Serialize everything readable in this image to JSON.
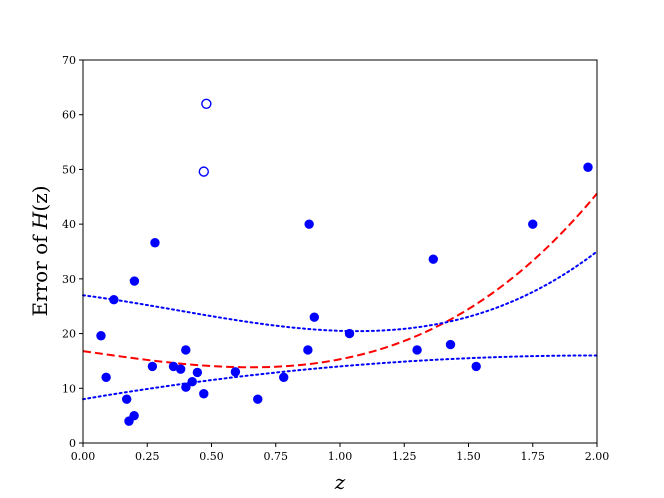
{
  "chart_data": {
    "type": "scatter",
    "xlabel": "z",
    "ylabel_prefix": "Error of ",
    "ylabel_func": "H",
    "ylabel_arg": "(z)",
    "xlim": [
      0.0,
      2.0
    ],
    "ylim": [
      0,
      70
    ],
    "xticks": [
      "0.00",
      "0.25",
      "0.50",
      "0.75",
      "1.00",
      "1.25",
      "1.50",
      "1.75",
      "2.00"
    ],
    "xtick_values": [
      0.0,
      0.25,
      0.5,
      0.75,
      1.0,
      1.25,
      1.5,
      1.75,
      2.0
    ],
    "yticks": [
      "0",
      "10",
      "20",
      "30",
      "40",
      "50",
      "60",
      "70"
    ],
    "ytick_values": [
      0,
      10,
      20,
      30,
      40,
      50,
      60,
      70
    ],
    "grid": false,
    "colors": {
      "points": "#0000ff",
      "fit_curve": "#ff0000",
      "bound_curves": "#0000ff"
    },
    "filled_points": [
      {
        "x": 0.07,
        "y": 19.6
      },
      {
        "x": 0.09,
        "y": 12.0
      },
      {
        "x": 0.12,
        "y": 26.2
      },
      {
        "x": 0.17,
        "y": 8.0
      },
      {
        "x": 0.179,
        "y": 4.0
      },
      {
        "x": 0.199,
        "y": 5.0
      },
      {
        "x": 0.2,
        "y": 29.6
      },
      {
        "x": 0.27,
        "y": 14.0
      },
      {
        "x": 0.28,
        "y": 36.6
      },
      {
        "x": 0.352,
        "y": 14.0
      },
      {
        "x": 0.38,
        "y": 13.5
      },
      {
        "x": 0.4,
        "y": 17.0
      },
      {
        "x": 0.4004,
        "y": 10.2
      },
      {
        "x": 0.425,
        "y": 11.2
      },
      {
        "x": 0.445,
        "y": 12.9
      },
      {
        "x": 0.47,
        "y": 9.0
      },
      {
        "x": 0.593,
        "y": 13.0
      },
      {
        "x": 0.68,
        "y": 8.0
      },
      {
        "x": 0.781,
        "y": 12.0
      },
      {
        "x": 0.875,
        "y": 17.0
      },
      {
        "x": 0.88,
        "y": 40.0
      },
      {
        "x": 0.9,
        "y": 23.0
      },
      {
        "x": 1.037,
        "y": 20.0
      },
      {
        "x": 1.3,
        "y": 17.0
      },
      {
        "x": 1.363,
        "y": 33.6
      },
      {
        "x": 1.43,
        "y": 18.0
      },
      {
        "x": 1.53,
        "y": 14.0
      },
      {
        "x": 1.75,
        "y": 40.0
      },
      {
        "x": 1.965,
        "y": 50.4
      }
    ],
    "open_points": [
      {
        "x": 0.47,
        "y": 49.6
      },
      {
        "x": 0.48,
        "y": 62.0
      }
    ],
    "curves": [
      {
        "style": "dashed",
        "color": "#ff0000",
        "coeffs": [
          16.8,
          -6.8,
          0.0,
          5.3
        ],
        "x_range": [
          0.0,
          2.0
        ]
      },
      {
        "style": "dotted",
        "color": "#0000ff",
        "coeffs": [
          27.0,
          -6.0,
          -6.0,
          5.5
        ],
        "x_range": [
          0.0,
          2.0
        ]
      },
      {
        "style": "dotted",
        "color": "#0000ff",
        "coeffs": [
          8.0,
          8.0,
          -2.0
        ],
        "x_range": [
          0.0,
          2.0
        ]
      }
    ]
  }
}
